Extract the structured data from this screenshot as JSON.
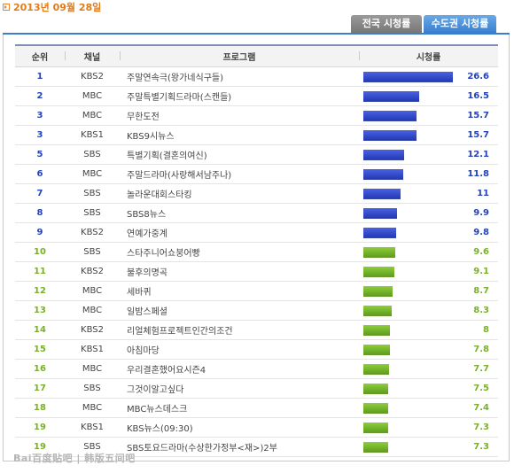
{
  "date": "2013년 09월 28일",
  "tabs": [
    {
      "label": "전국 시청률",
      "active": false
    },
    {
      "label": "수도권 시청률",
      "active": true
    }
  ],
  "table": {
    "headers": {
      "rank": "순위",
      "channel": "채널",
      "program": "프로그램",
      "rating": "시청률"
    },
    "max_rating": 26.6,
    "rows": [
      {
        "rank": "1",
        "channel": "KBS2",
        "program": "주말연속극(왕가네식구들)",
        "rating": 26.6,
        "rating_label": "26.6",
        "color": "blue"
      },
      {
        "rank": "2",
        "channel": "MBC",
        "program": "주말특별기획드라마(스캔들)",
        "rating": 16.5,
        "rating_label": "16.5",
        "color": "blue"
      },
      {
        "rank": "3",
        "channel": "MBC",
        "program": "무한도전",
        "rating": 15.7,
        "rating_label": "15.7",
        "color": "blue"
      },
      {
        "rank": "3",
        "channel": "KBS1",
        "program": "KBS9시뉴스",
        "rating": 15.7,
        "rating_label": "15.7",
        "color": "blue"
      },
      {
        "rank": "5",
        "channel": "SBS",
        "program": "특별기획(결혼의여신)",
        "rating": 12.1,
        "rating_label": "12.1",
        "color": "blue"
      },
      {
        "rank": "6",
        "channel": "MBC",
        "program": "주말드라마(사랑해서남주나)",
        "rating": 11.8,
        "rating_label": "11.8",
        "color": "blue"
      },
      {
        "rank": "7",
        "channel": "SBS",
        "program": "놀라운대회스타킹",
        "rating": 11,
        "rating_label": "11",
        "color": "blue"
      },
      {
        "rank": "8",
        "channel": "SBS",
        "program": "SBS8뉴스",
        "rating": 9.9,
        "rating_label": "9.9",
        "color": "blue"
      },
      {
        "rank": "9",
        "channel": "KBS2",
        "program": "연예가중계",
        "rating": 9.8,
        "rating_label": "9.8",
        "color": "blue"
      },
      {
        "rank": "10",
        "channel": "SBS",
        "program": "스타주니어쇼붕어빵",
        "rating": 9.6,
        "rating_label": "9.6",
        "color": "green"
      },
      {
        "rank": "11",
        "channel": "KBS2",
        "program": "불후의명곡",
        "rating": 9.1,
        "rating_label": "9.1",
        "color": "green"
      },
      {
        "rank": "12",
        "channel": "MBC",
        "program": "세바퀴",
        "rating": 8.7,
        "rating_label": "8.7",
        "color": "green"
      },
      {
        "rank": "13",
        "channel": "MBC",
        "program": "일밤스페셜",
        "rating": 8.3,
        "rating_label": "8.3",
        "color": "green"
      },
      {
        "rank": "14",
        "channel": "KBS2",
        "program": "리얼체험프로젝트인간의조건",
        "rating": 8,
        "rating_label": "8",
        "color": "green"
      },
      {
        "rank": "15",
        "channel": "KBS1",
        "program": "아침마당",
        "rating": 7.8,
        "rating_label": "7.8",
        "color": "green"
      },
      {
        "rank": "16",
        "channel": "MBC",
        "program": "우리결혼했어요시즌4",
        "rating": 7.7,
        "rating_label": "7.7",
        "color": "green"
      },
      {
        "rank": "17",
        "channel": "SBS",
        "program": "그것이알고싶다",
        "rating": 7.5,
        "rating_label": "7.5",
        "color": "green"
      },
      {
        "rank": "18",
        "channel": "MBC",
        "program": "MBC뉴스데스크",
        "rating": 7.4,
        "rating_label": "7.4",
        "color": "green"
      },
      {
        "rank": "19",
        "channel": "KBS1",
        "program": "KBS뉴스(09:30)",
        "rating": 7.3,
        "rating_label": "7.3",
        "color": "green"
      },
      {
        "rank": "19",
        "channel": "SBS",
        "program": "SBS토요드라마(수상한가정부<재>)2부",
        "rating": 7.3,
        "rating_label": "7.3",
        "color": "green"
      }
    ]
  },
  "watermark": "Bai百度贴吧 | 韩版五间吧",
  "colors": {
    "date": "#e07b18",
    "tab_active": "#3a7fcf",
    "bar_blue": "#2539b8",
    "bar_green": "#6aae24"
  }
}
